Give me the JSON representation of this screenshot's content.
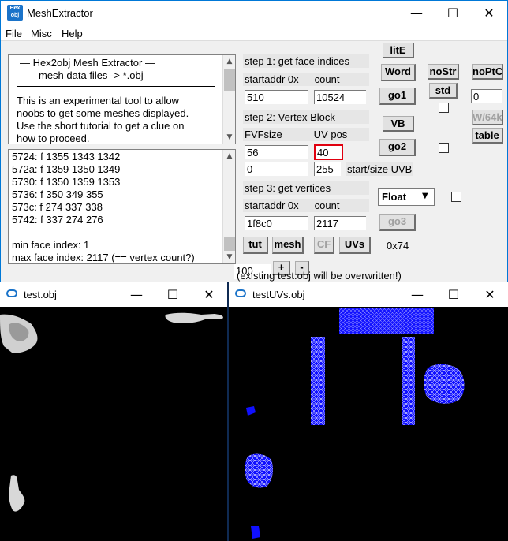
{
  "window": {
    "title": "MeshExtractor",
    "icon_text_1": "Hex",
    "icon_text_2": "obj"
  },
  "menu": [
    "File",
    "Misc",
    "Help"
  ],
  "info": {
    "line1": "—   Hex2obj Mesh Extractor   —",
    "line2": "mesh data files -> *.obj",
    "line3": "This is an experimental tool to allow",
    "line4": "noobs to get some meshes displayed.",
    "line5": "Use the short tutorial to get a clue on",
    "line6": "how to proceed."
  },
  "log": {
    "lines": [
      "5724: f  1355 1343 1342",
      "572a: f  1359 1350 1349",
      "5730: f  1350 1359 1353",
      "5736: f  350 349 355",
      "573c: f  274 337 338",
      "5742: f  337 274 276",
      "———",
      "min face index: 1",
      "max face index: 2117 (== vertex count?)"
    ]
  },
  "step1": {
    "title": "step 1: get face indices",
    "startaddr_label": "startaddr 0x",
    "count_label": "count",
    "startaddr": "510",
    "count": "10524"
  },
  "step2": {
    "title": "step 2: Vertex Block",
    "fvf_label": "FVFsize",
    "uvpos_label": "UV pos",
    "fvf": "56",
    "uvpos": "40",
    "start": "0",
    "size": "255",
    "uvb_label": "start/size UVB"
  },
  "step3": {
    "title": "step 3: get vertices",
    "startaddr_label": "startaddr 0x",
    "count_label": "count",
    "startaddr": "1f8c0",
    "count": "2117"
  },
  "buttons": {
    "litE": "litE",
    "word": "Word",
    "go1": "go1",
    "vb": "VB",
    "go2": "go2",
    "go3": "go3",
    "noStr": "noStr",
    "std": "std",
    "noPtC": "noPtC",
    "w64": "W/64k",
    "table": "table",
    "tut": "tut",
    "mesh": "mesh",
    "cf": "CF",
    "uvs": "UVs",
    "plus": "+",
    "minus": "-"
  },
  "side_input": "0",
  "dropdown": {
    "selected": "Float"
  },
  "hex_value": "0x74",
  "zoom_value": "100",
  "overwrite_note": "(existing test.obj will be overwritten!)",
  "sub1": {
    "title": "test.obj"
  },
  "sub2": {
    "title": "testUVs.obj"
  },
  "caption": {
    "min": "—",
    "max": "☐",
    "close": "✕"
  },
  "colors": {
    "uv_blue": "#1010ff",
    "highlight": "#e0000f"
  }
}
